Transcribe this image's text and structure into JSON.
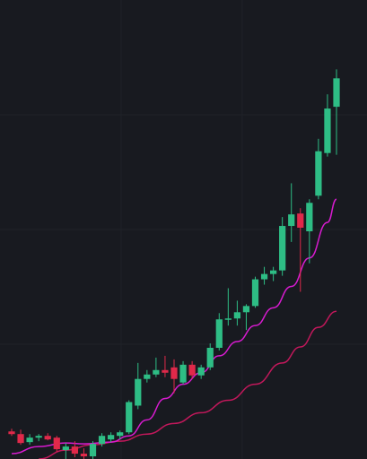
{
  "chart_data": {
    "type": "candlestick",
    "title": "",
    "xlabel": "",
    "ylabel": "",
    "grid": true,
    "legend": "none",
    "x_range": [
      0,
      37
    ],
    "y_range": [
      0,
      512
    ],
    "colors": {
      "background": "#181a20",
      "grid": "#1f2229",
      "up": "#2ebd85",
      "down": "#e0294a",
      "ma_fast": "#d81bd0",
      "ma_slow": "#c2185b"
    },
    "candles": [
      {
        "i": 0,
        "o": 31,
        "h": 34,
        "l": 26,
        "c": 28
      },
      {
        "i": 1,
        "o": 28,
        "h": 33,
        "l": 16,
        "c": 18
      },
      {
        "i": 2,
        "o": 19,
        "h": 28,
        "l": 16,
        "c": 24
      },
      {
        "i": 3,
        "o": 24,
        "h": 28,
        "l": 20,
        "c": 26
      },
      {
        "i": 4,
        "o": 26,
        "h": 29,
        "l": 21,
        "c": 22
      },
      {
        "i": 5,
        "o": 24,
        "h": 26,
        "l": 8,
        "c": 11
      },
      {
        "i": 6,
        "o": 10,
        "h": 18,
        "l": 0,
        "c": 14
      },
      {
        "i": 7,
        "o": 14,
        "h": 20,
        "l": 2,
        "c": 6
      },
      {
        "i": 8,
        "o": 6,
        "h": 12,
        "l": 0,
        "c": 3
      },
      {
        "i": 9,
        "o": 3,
        "h": 20,
        "l": 0,
        "c": 17
      },
      {
        "i": 10,
        "o": 17,
        "h": 29,
        "l": 14,
        "c": 26
      },
      {
        "i": 11,
        "o": 22,
        "h": 30,
        "l": 19,
        "c": 27
      },
      {
        "i": 12,
        "o": 26,
        "h": 32,
        "l": 22,
        "c": 30
      },
      {
        "i": 13,
        "o": 30,
        "h": 66,
        "l": 28,
        "c": 64
      },
      {
        "i": 14,
        "o": 60,
        "h": 108,
        "l": 56,
        "c": 90
      },
      {
        "i": 15,
        "o": 90,
        "h": 100,
        "l": 86,
        "c": 95
      },
      {
        "i": 16,
        "o": 95,
        "h": 114,
        "l": 92,
        "c": 100
      },
      {
        "i": 17,
        "o": 100,
        "h": 116,
        "l": 92,
        "c": 97
      },
      {
        "i": 18,
        "o": 103,
        "h": 112,
        "l": 74,
        "c": 90
      },
      {
        "i": 19,
        "o": 86,
        "h": 110,
        "l": 84,
        "c": 106
      },
      {
        "i": 20,
        "o": 106,
        "h": 110,
        "l": 90,
        "c": 94
      },
      {
        "i": 21,
        "o": 94,
        "h": 106,
        "l": 90,
        "c": 103
      },
      {
        "i": 22,
        "o": 103,
        "h": 130,
        "l": 100,
        "c": 125
      },
      {
        "i": 23,
        "o": 125,
        "h": 164,
        "l": 122,
        "c": 157
      },
      {
        "i": 24,
        "o": 157,
        "h": 192,
        "l": 150,
        "c": 158
      },
      {
        "i": 25,
        "o": 158,
        "h": 178,
        "l": 150,
        "c": 165
      },
      {
        "i": 26,
        "o": 165,
        "h": 174,
        "l": 145,
        "c": 172
      },
      {
        "i": 27,
        "o": 172,
        "h": 205,
        "l": 170,
        "c": 202
      },
      {
        "i": 28,
        "o": 202,
        "h": 216,
        "l": 196,
        "c": 208
      },
      {
        "i": 29,
        "o": 208,
        "h": 216,
        "l": 200,
        "c": 212
      },
      {
        "i": 30,
        "o": 212,
        "h": 272,
        "l": 206,
        "c": 262
      },
      {
        "i": 31,
        "o": 262,
        "h": 310,
        "l": 244,
        "c": 275
      },
      {
        "i": 32,
        "o": 276,
        "h": 282,
        "l": 188,
        "c": 260
      },
      {
        "i": 33,
        "o": 256,
        "h": 292,
        "l": 220,
        "c": 288
      },
      {
        "i": 34,
        "o": 296,
        "h": 360,
        "l": 292,
        "c": 346
      },
      {
        "i": 35,
        "o": 344,
        "h": 410,
        "l": 340,
        "c": 394
      },
      {
        "i": 36,
        "o": 396,
        "h": 438,
        "l": 342,
        "c": 428
      }
    ],
    "ma_fast": [
      {
        "i": 0,
        "v": 6
      },
      {
        "i": 3,
        "v": 14
      },
      {
        "i": 6,
        "v": 18
      },
      {
        "i": 8,
        "v": 17
      },
      {
        "i": 11,
        "v": 19
      },
      {
        "i": 13,
        "v": 26
      },
      {
        "i": 15,
        "v": 44
      },
      {
        "i": 17,
        "v": 68
      },
      {
        "i": 19,
        "v": 84
      },
      {
        "i": 21,
        "v": 97
      },
      {
        "i": 23,
        "v": 116
      },
      {
        "i": 25,
        "v": 132
      },
      {
        "i": 27,
        "v": 150
      },
      {
        "i": 29,
        "v": 170
      },
      {
        "i": 31,
        "v": 194
      },
      {
        "i": 33,
        "v": 226
      },
      {
        "i": 35,
        "v": 266
      },
      {
        "i": 36,
        "v": 292
      }
    ],
    "ma_slow": [
      {
        "i": 3,
        "v": 0
      },
      {
        "i": 6,
        "v": 10
      },
      {
        "i": 9,
        "v": 16
      },
      {
        "i": 12,
        "v": 20
      },
      {
        "i": 15,
        "v": 28
      },
      {
        "i": 18,
        "v": 40
      },
      {
        "i": 21,
        "v": 52
      },
      {
        "i": 24,
        "v": 66
      },
      {
        "i": 27,
        "v": 84
      },
      {
        "i": 30,
        "v": 108
      },
      {
        "i": 32,
        "v": 126
      },
      {
        "i": 34,
        "v": 148
      },
      {
        "i": 36,
        "v": 166
      }
    ]
  }
}
